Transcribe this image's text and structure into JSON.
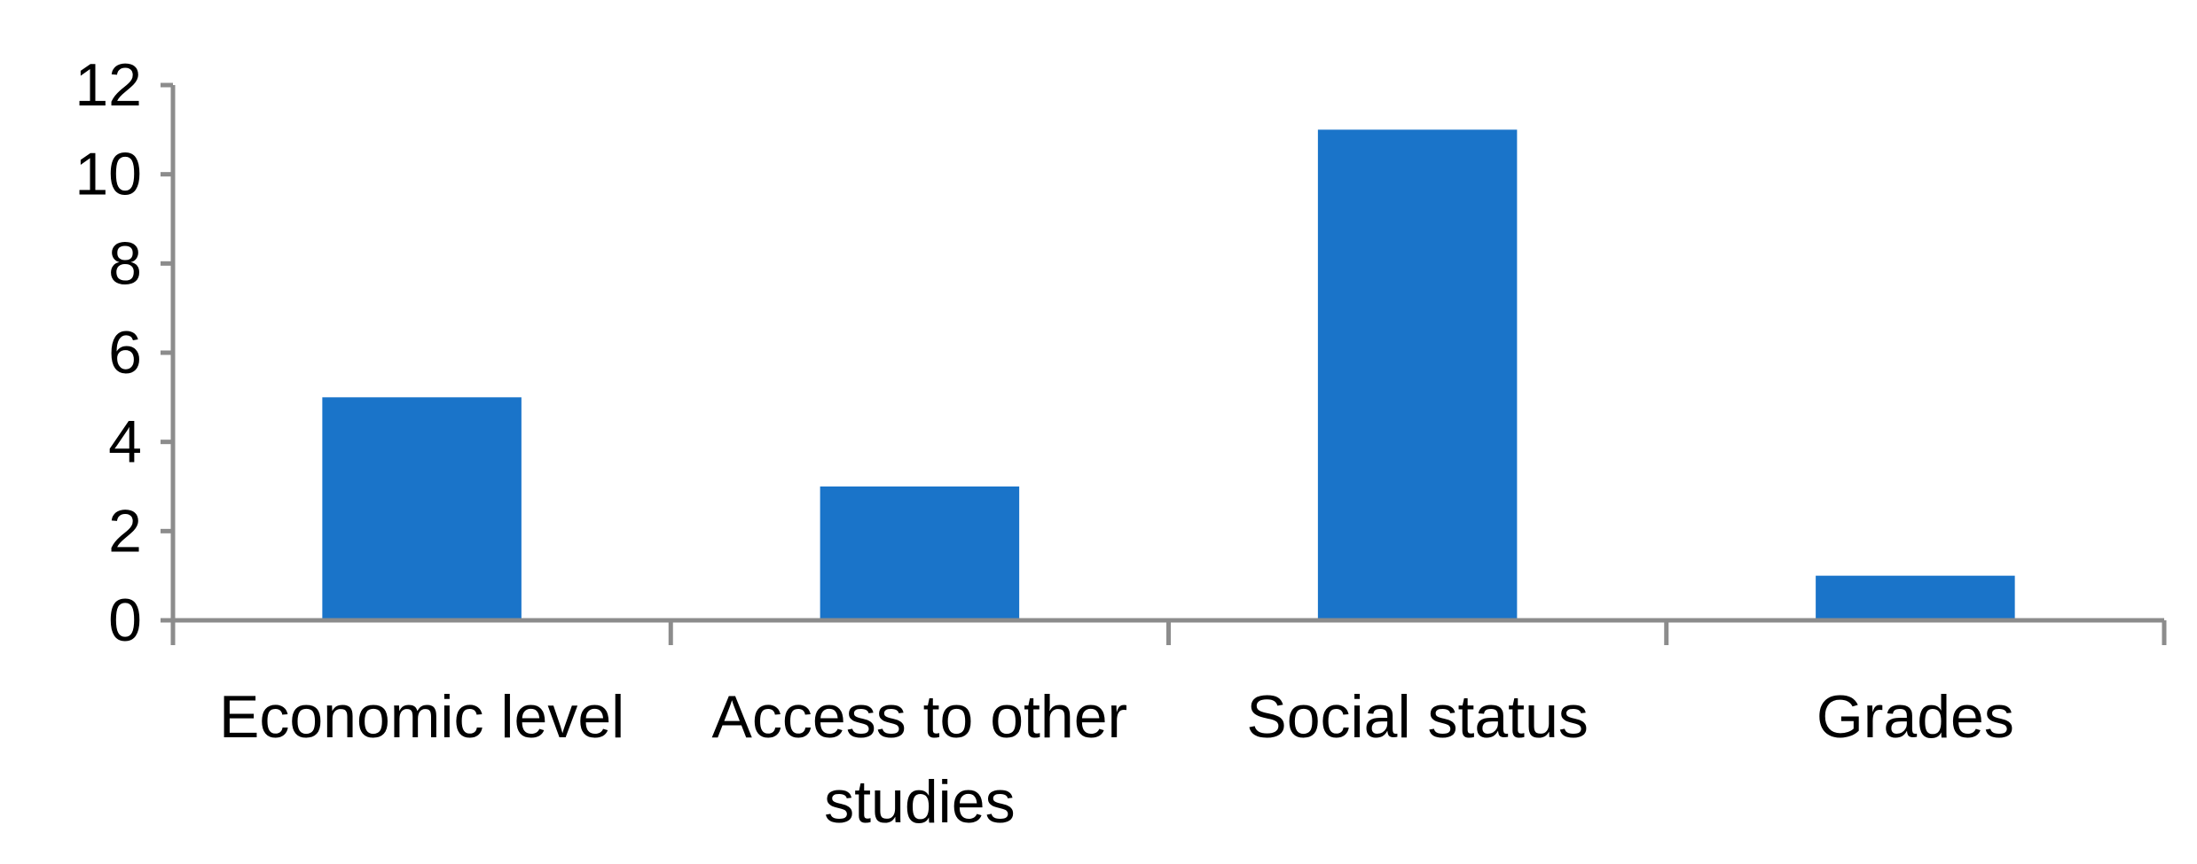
{
  "chart_data": {
    "type": "bar",
    "title": "",
    "xlabel": "",
    "ylabel": "",
    "categories": [
      "Economic level",
      "Access to other studies",
      "Social status",
      "Grades"
    ],
    "category_label_lines": [
      [
        "Economic level"
      ],
      [
        "Access to other",
        "studies"
      ],
      [
        "Social status"
      ],
      [
        "Grades"
      ]
    ],
    "values": [
      5,
      3,
      11,
      1
    ],
    "ylim": [
      0,
      12
    ],
    "yticks": [
      0,
      2,
      4,
      6,
      8,
      10,
      12
    ],
    "grid": false,
    "legend": "none",
    "bar_color": "#1a74c9",
    "axis_color": "#8c8c8c"
  }
}
